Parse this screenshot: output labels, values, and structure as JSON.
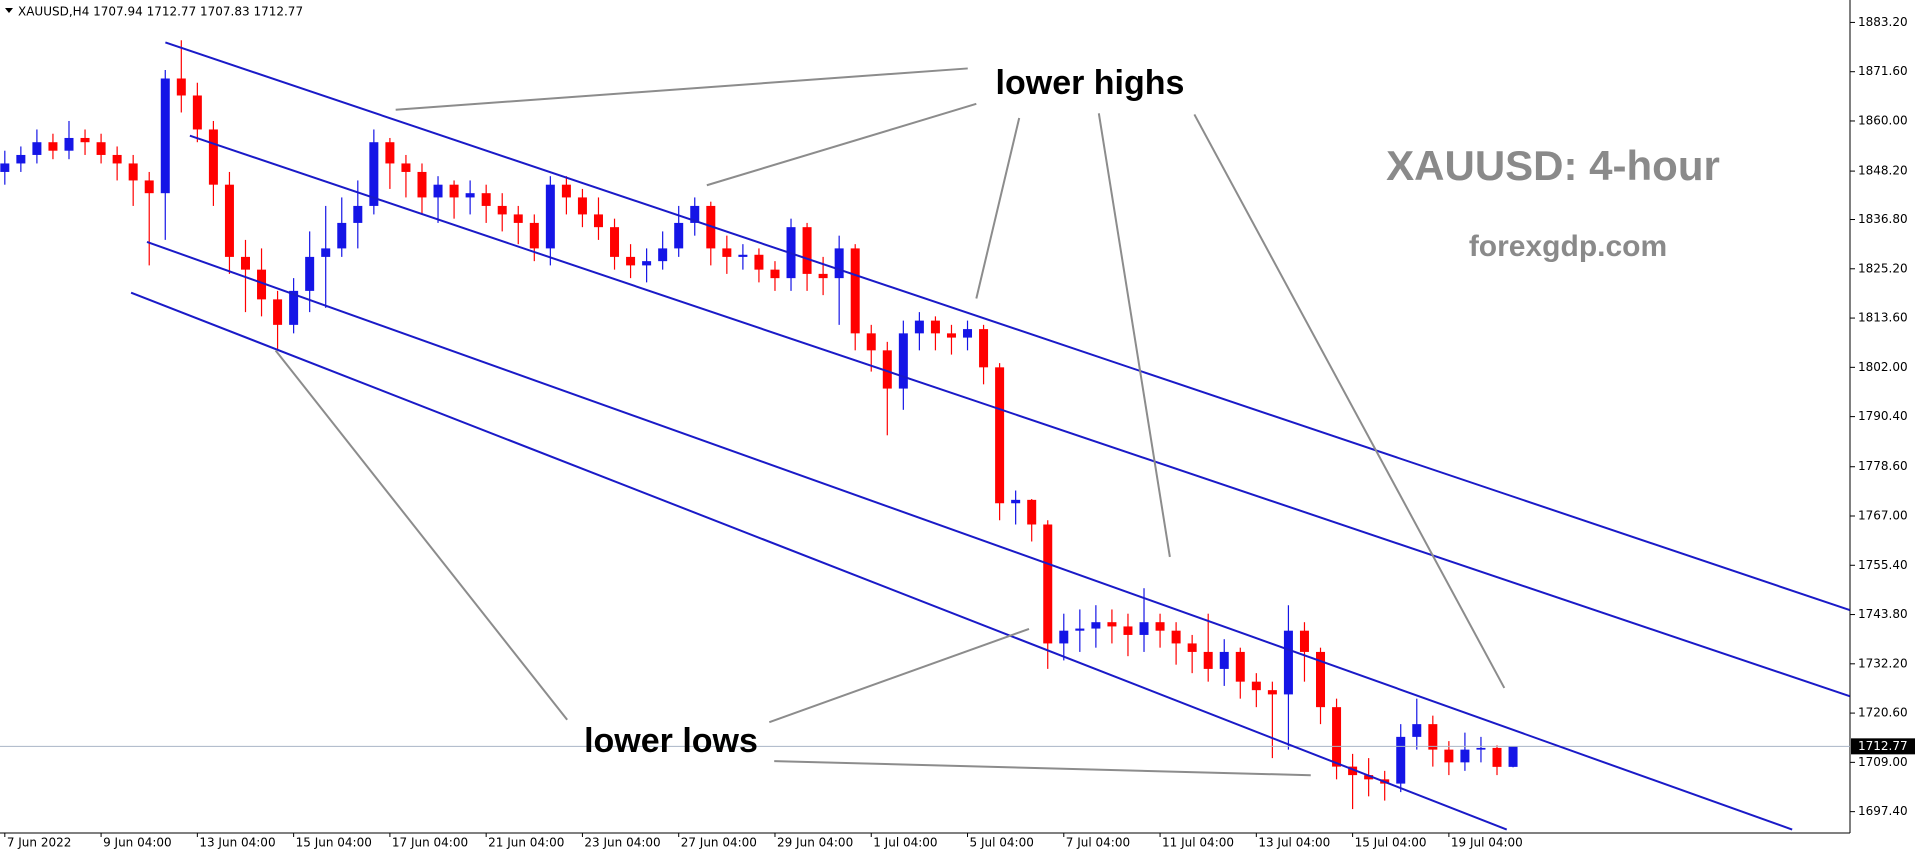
{
  "chart_data": {
    "type": "candlestick",
    "header": "XAUUSD,H4  1707.94 1712.77 1707.83 1712.77",
    "watermark": "XAUUSD: 4-hour",
    "source": "forexgdp.com",
    "annotations": [
      "lower highs",
      "lower lows"
    ],
    "up_color": "#1515e6",
    "down_color": "#ff0000",
    "grid": false,
    "last_price_line": true,
    "x": [
      0,
      1,
      2,
      3,
      4,
      5,
      6,
      7,
      8,
      9,
      10,
      11,
      12,
      13,
      14,
      15,
      16,
      17,
      18,
      19,
      20,
      21,
      22,
      23,
      24,
      25,
      26,
      27,
      28,
      29,
      30,
      31,
      32,
      33,
      34,
      35,
      36,
      37,
      38,
      39,
      40,
      41,
      42,
      43,
      44,
      45,
      46,
      47,
      48,
      49,
      50,
      51,
      52,
      53,
      54,
      55,
      56,
      57,
      58,
      59,
      60,
      61,
      62,
      63,
      64,
      65,
      66,
      67,
      68,
      69,
      70,
      71,
      72,
      73,
      74,
      75,
      76,
      77,
      78,
      79,
      80,
      81,
      82,
      83,
      84,
      85,
      86,
      87,
      88,
      89,
      90,
      91,
      92,
      93,
      94
    ],
    "open": [
      1848,
      1850,
      1852,
      1855,
      1853,
      1856,
      1855,
      1852,
      1850,
      1846,
      1843,
      1870,
      1866,
      1858,
      1845,
      1828,
      1825,
      1818,
      1812,
      1820,
      1828,
      1830,
      1836,
      1840,
      1855,
      1850,
      1848,
      1842,
      1845,
      1842,
      1843,
      1840,
      1838,
      1836,
      1830,
      1845,
      1842,
      1838,
      1835,
      1828,
      1826,
      1827,
      1830,
      1836,
      1840,
      1830,
      1828,
      1828.5,
      1825,
      1823,
      1835,
      1824,
      1823,
      1830,
      1810,
      1806,
      1797,
      1810,
      1813,
      1810,
      1809,
      1811,
      1802,
      1770,
      1770.8,
      1765,
      1737,
      1740,
      1740.5,
      1742,
      1741,
      1739,
      1742,
      1740,
      1737,
      1735,
      1731,
      1735,
      1728,
      1726,
      1725,
      1740,
      1735,
      1722,
      1708,
      1706,
      1705,
      1704,
      1715,
      1718,
      1712,
      1709,
      1712,
      1712.4,
      1707.94
    ],
    "high": [
      1853,
      1854,
      1858,
      1857,
      1860,
      1858,
      1857,
      1854,
      1852,
      1848,
      1872,
      1879,
      1869,
      1860,
      1848,
      1832,
      1830,
      1820,
      1823,
      1834,
      1840,
      1842,
      1846,
      1858,
      1856,
      1852,
      1850,
      1847,
      1846,
      1846,
      1845,
      1843,
      1840,
      1838,
      1847,
      1847,
      1844,
      1842,
      1837,
      1831,
      1830,
      1834,
      1840,
      1842,
      1841,
      1833,
      1831,
      1830,
      1827,
      1837,
      1836,
      1828,
      1833,
      1831,
      1812,
      1808,
      1813,
      1815,
      1814,
      1812,
      1813,
      1812,
      1803,
      1773,
      1771,
      1766,
      1744,
      1745,
      1746,
      1745,
      1744,
      1750,
      1744,
      1742,
      1739,
      1744,
      1738,
      1736,
      1730,
      1728,
      1746,
      1742,
      1736,
      1724,
      1711,
      1710,
      1707,
      1718,
      1724,
      1720,
      1714,
      1716,
      1715,
      1713,
      1712.77
    ],
    "low": [
      1845,
      1848,
      1850,
      1851,
      1851,
      1852,
      1850,
      1846,
      1840,
      1826,
      1832,
      1862,
      1855,
      1840,
      1824,
      1815,
      1814,
      1806,
      1810,
      1815,
      1816,
      1828,
      1830,
      1838,
      1844,
      1842,
      1838,
      1836,
      1837,
      1838,
      1836,
      1834,
      1831,
      1827,
      1826,
      1838,
      1835,
      1832,
      1825,
      1823,
      1822,
      1825,
      1828,
      1833,
      1826,
      1824,
      1825,
      1822,
      1820,
      1820,
      1820,
      1819,
      1812,
      1806,
      1801,
      1786,
      1792,
      1806,
      1806,
      1805,
      1806,
      1798,
      1766,
      1765,
      1761,
      1731,
      1733,
      1735,
      1736,
      1737,
      1734,
      1735,
      1736,
      1732,
      1730,
      1728,
      1727,
      1724,
      1722,
      1710,
      1712,
      1728,
      1718,
      1705,
      1698,
      1701,
      1700,
      1702,
      1712,
      1708,
      1706,
      1707,
      1709,
      1706,
      1707.83
    ],
    "close": [
      1850,
      1852,
      1855,
      1853,
      1856,
      1855,
      1852,
      1850,
      1846,
      1843,
      1870,
      1866,
      1858,
      1845,
      1828,
      1825,
      1818,
      1812,
      1820,
      1828,
      1830,
      1836,
      1840,
      1855,
      1850,
      1848,
      1842,
      1845,
      1842,
      1843,
      1840,
      1838,
      1836,
      1830,
      1845,
      1842,
      1838,
      1835,
      1828,
      1826,
      1827,
      1830,
      1836,
      1840,
      1830,
      1828,
      1828.5,
      1825,
      1823,
      1835,
      1824,
      1823,
      1830,
      1810,
      1806,
      1797,
      1810,
      1813,
      1810,
      1809,
      1811,
      1802,
      1770,
      1770.8,
      1765,
      1737,
      1740,
      1740.5,
      1742,
      1741,
      1739,
      1742,
      1740,
      1737,
      1735,
      1731,
      1735,
      1728,
      1726,
      1725,
      1740,
      1735,
      1722,
      1708,
      1706,
      1705,
      1704,
      1715,
      1718,
      1712,
      1709,
      1712,
      1712.4,
      1707.94,
      1712.77
    ],
    "xlim": [
      -0.3,
      115
    ],
    "xticks": [
      {
        "value": 0,
        "label": "7 Jun 2022"
      },
      {
        "value": 6,
        "label": "9 Jun 04:00"
      },
      {
        "value": 12,
        "label": "13 Jun 04:00"
      },
      {
        "value": 18,
        "label": "15 Jun 04:00"
      },
      {
        "value": 24,
        "label": "17 Jun 04:00"
      },
      {
        "value": 30,
        "label": "21 Jun 04:00"
      },
      {
        "value": 36,
        "label": "23 Jun 04:00"
      },
      {
        "value": 42,
        "label": "27 Jun 04:00"
      },
      {
        "value": 48,
        "label": "29 Jun 04:00"
      },
      {
        "value": 54,
        "label": "1 Jul 04:00"
      },
      {
        "value": 60,
        "label": "5 Jul 04:00"
      },
      {
        "value": 66,
        "label": "7 Jul 04:00"
      },
      {
        "value": 72,
        "label": "11 Jul 04:00"
      },
      {
        "value": 78,
        "label": "13 Jul 04:00"
      },
      {
        "value": 84,
        "label": "15 Jul 04:00"
      },
      {
        "value": 90,
        "label": "19 Jul 04:00"
      }
    ],
    "ylim": [
      1692.37,
      1888.48
    ],
    "yticks": [
      {
        "value": 1883.2,
        "label": "1883.20"
      },
      {
        "value": 1871.6,
        "label": "1871.60"
      },
      {
        "value": 1860,
        "label": "1860.00"
      },
      {
        "value": 1848.2,
        "label": "1848.20"
      },
      {
        "value": 1836.8,
        "label": "1836.80"
      },
      {
        "value": 1825.2,
        "label": "1825.20"
      },
      {
        "value": 1813.6,
        "label": "1813.60"
      },
      {
        "value": 1802,
        "label": "1802.00"
      },
      {
        "value": 1790.4,
        "label": "1790.40"
      },
      {
        "value": 1778.6,
        "label": "1778.60"
      },
      {
        "value": 1767,
        "label": "1767.00"
      },
      {
        "value": 1755.4,
        "label": "1755.40"
      },
      {
        "value": 1743.8,
        "label": "1743.80"
      },
      {
        "value": 1732.2,
        "label": "1732.20"
      },
      {
        "value": 1720.6,
        "label": "1720.60"
      },
      {
        "value": 1709,
        "label": "1709.00"
      },
      {
        "value": 1697.4,
        "label": "1697.40"
      }
    ]
  }
}
